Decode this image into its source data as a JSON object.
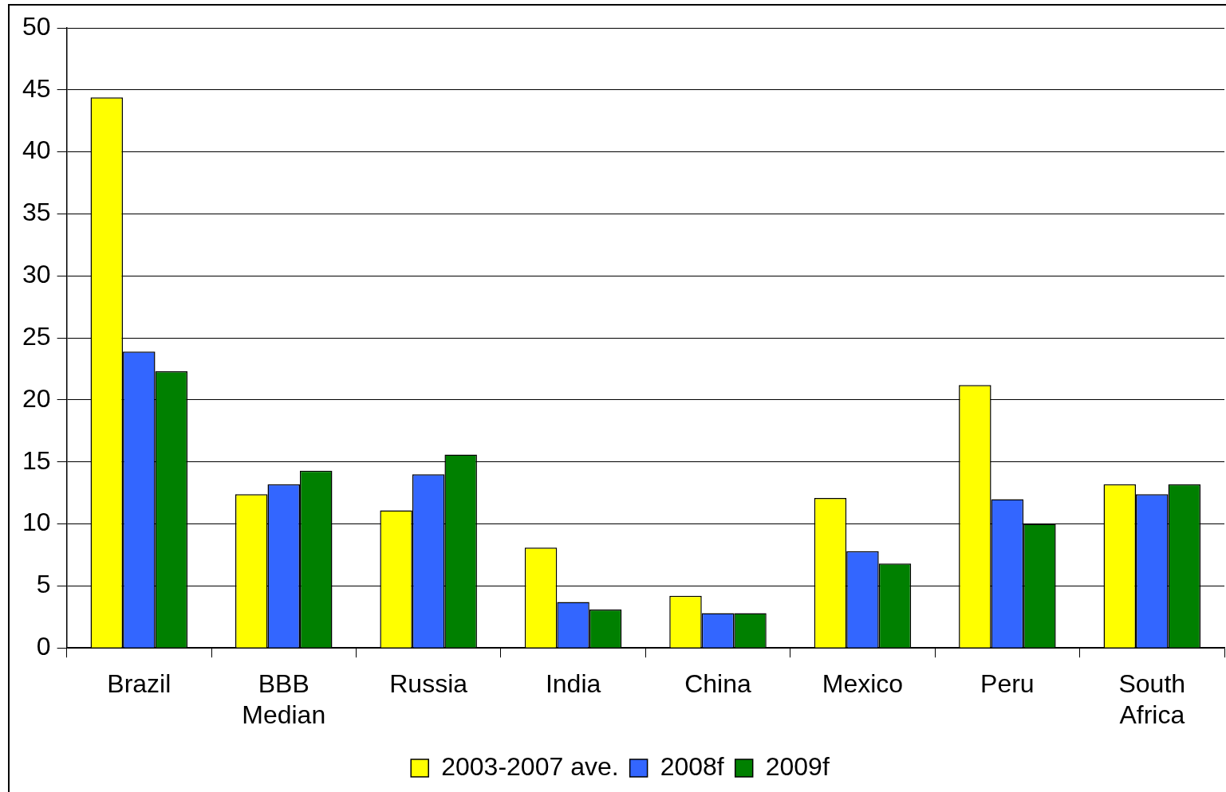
{
  "chart_data": {
    "type": "bar",
    "categories": [
      "Brazil",
      "BBB Median",
      "Russia",
      "India",
      "China",
      "Mexico",
      "Peru",
      "South Africa"
    ],
    "series": [
      {
        "name": "2003-2007 ave.",
        "color": "#ffff00",
        "values": [
          44.4,
          12.4,
          11.1,
          8.1,
          4.2,
          12.1,
          21.2,
          13.2
        ]
      },
      {
        "name": "2008f",
        "color": "#3366ff",
        "values": [
          23.9,
          13.2,
          14.0,
          3.7,
          2.8,
          7.8,
          12.0,
          12.4
        ]
      },
      {
        "name": "2009f",
        "color": "#008000",
        "values": [
          22.3,
          14.3,
          15.6,
          3.1,
          2.8,
          6.8,
          10.0,
          13.2
        ]
      }
    ],
    "ylim": [
      0,
      50
    ],
    "yticks": [
      0,
      5,
      10,
      15,
      20,
      25,
      30,
      35,
      40,
      45,
      50
    ],
    "grid": "y",
    "legend": "bottom"
  }
}
